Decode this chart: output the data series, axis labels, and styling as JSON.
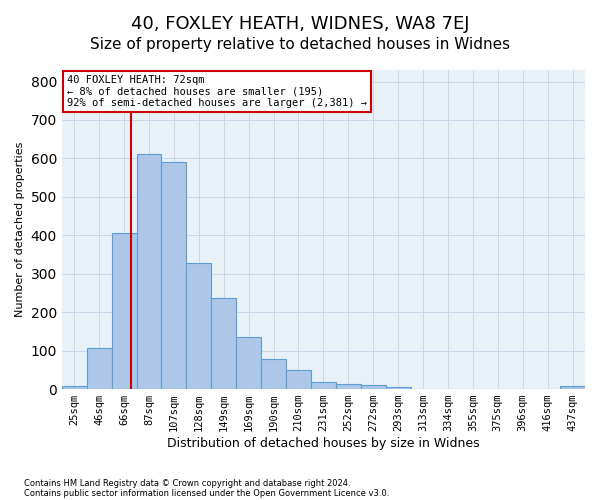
{
  "title1": "40, FOXLEY HEATH, WIDNES, WA8 7EJ",
  "title2": "Size of property relative to detached houses in Widnes",
  "xlabel": "Distribution of detached houses by size in Widnes",
  "ylabel": "Number of detached properties",
  "footnote1": "Contains HM Land Registry data © Crown copyright and database right 2024.",
  "footnote2": "Contains public sector information licensed under the Open Government Licence v3.0.",
  "categories": [
    "25sqm",
    "46sqm",
    "66sqm",
    "87sqm",
    "107sqm",
    "128sqm",
    "149sqm",
    "169sqm",
    "190sqm",
    "210sqm",
    "231sqm",
    "252sqm",
    "272sqm",
    "293sqm",
    "313sqm",
    "334sqm",
    "355sqm",
    "375sqm",
    "396sqm",
    "416sqm",
    "437sqm"
  ],
  "bar_heights": [
    7,
    106,
    405,
    612,
    590,
    328,
    238,
    135,
    77,
    50,
    18,
    13,
    10,
    5,
    0,
    0,
    0,
    0,
    0,
    0,
    7
  ],
  "bar_color": "#aec6e8",
  "bar_edge_color": "#5a9fd4",
  "annotation_text": "40 FOXLEY HEATH: 72sqm\n← 8% of detached houses are smaller (195)\n92% of semi-detached houses are larger (2,381) →",
  "annotation_box_color": "#ffffff",
  "annotation_box_edge": "#cc0000",
  "ylim": [
    0,
    830
  ],
  "yticks": [
    0,
    100,
    200,
    300,
    400,
    500,
    600,
    700,
    800
  ],
  "grid_color": "#c8d8e8",
  "background_color": "#e8f0f8",
  "title1_fontsize": 13,
  "title2_fontsize": 11,
  "property_size_sqm": 72,
  "bin_starts": [
    25,
    46,
    66,
    87,
    107,
    128,
    149,
    169,
    190,
    210,
    231,
    252,
    272,
    293,
    313,
    334,
    355,
    375,
    396,
    416,
    437
  ]
}
